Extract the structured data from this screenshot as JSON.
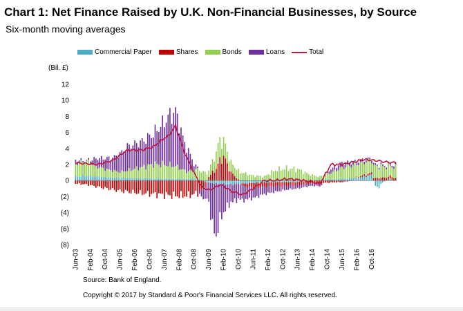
{
  "title": "Chart 1: Net Finance Raised by U.K. Non-Financial Businesses, by Source",
  "subtitle": "Six-month moving averages",
  "unit_label": "(Bil. £)",
  "source": "Source: Bank of England.",
  "copyright": "Copyright © 2017 by Standard & Poor's Financial Services LLC. All rights reserved.",
  "colors": {
    "commercial_paper": "#4bacc6",
    "shares": "#c00000",
    "bonds": "#92d050",
    "loans": "#7030a0",
    "total": "#c0143c"
  },
  "chart_data": {
    "type": "bar",
    "stacked": true,
    "frequency": "monthly",
    "ylim": [
      -8,
      12
    ],
    "yticks": [
      -8,
      -6,
      -4,
      -2,
      0,
      2,
      4,
      6,
      8,
      10,
      12
    ],
    "ytick_labels": [
      "(8)",
      "(6)",
      "(4)",
      "(2)",
      "0",
      "2",
      "4",
      "6",
      "8",
      "10",
      "12"
    ],
    "xtick_labels": [
      "Jun-03",
      "Feb-04",
      "Oct-04",
      "Jun-05",
      "Feb-06",
      "Oct-06",
      "Jun-07",
      "Feb-08",
      "Oct-08",
      "Jun-09",
      "Feb-10",
      "Oct-10",
      "Jun-11",
      "Feb-12",
      "Oct-12",
      "Jun-13",
      "Feb-14",
      "Oct-14",
      "Jun-15",
      "Feb-16",
      "Oct-16"
    ],
    "legend": [
      "Commercial Paper",
      "Shares",
      "Bonds",
      "Loans",
      "Total"
    ],
    "legend_position": "top",
    "grid": false,
    "anchors": {
      "commercial_paper": [
        [
          0,
          0.5
        ],
        [
          6,
          0.6
        ],
        [
          16,
          0.4
        ],
        [
          30,
          0.3
        ],
        [
          48,
          0.2
        ],
        [
          60,
          0.2
        ],
        [
          66,
          0.2
        ],
        [
          72,
          -0.3
        ],
        [
          84,
          -0.5
        ],
        [
          96,
          -0.3
        ],
        [
          108,
          -0.2
        ],
        [
          120,
          -0.2
        ],
        [
          132,
          0.1
        ],
        [
          144,
          0.2
        ],
        [
          150,
          0.3
        ],
        [
          156,
          0.5
        ],
        [
          160,
          0.7
        ],
        [
          162,
          -0.6
        ],
        [
          164,
          -0.9
        ],
        [
          166,
          -0.2
        ],
        [
          168,
          0.0
        ],
        [
          170,
          0.2
        ],
        [
          172,
          0.0
        ],
        [
          173,
          0.0
        ]
      ],
      "shares": [
        [
          0,
          -0.4
        ],
        [
          6,
          -0.5
        ],
        [
          12,
          -0.8
        ],
        [
          24,
          -1.3
        ],
        [
          36,
          -1.6
        ],
        [
          48,
          -1.8
        ],
        [
          54,
          -1.9
        ],
        [
          60,
          -1.9
        ],
        [
          66,
          -1.6
        ],
        [
          70,
          -0.6
        ],
        [
          72,
          0.5
        ],
        [
          76,
          1.5
        ],
        [
          78,
          2.5
        ],
        [
          80,
          3.0
        ],
        [
          82,
          2.0
        ],
        [
          84,
          1.0
        ],
        [
          90,
          -0.3
        ],
        [
          96,
          -0.6
        ],
        [
          108,
          -0.5
        ],
        [
          120,
          -0.4
        ],
        [
          132,
          -0.3
        ],
        [
          144,
          -0.2
        ],
        [
          156,
          0.2
        ],
        [
          168,
          0.4
        ],
        [
          173,
          0.3
        ]
      ],
      "bonds": [
        [
          0,
          1.6
        ],
        [
          6,
          1.8
        ],
        [
          12,
          1.2
        ],
        [
          24,
          0.7
        ],
        [
          36,
          1.4
        ],
        [
          42,
          1.8
        ],
        [
          48,
          1.8
        ],
        [
          54,
          1.6
        ],
        [
          60,
          0.9
        ],
        [
          66,
          1.2
        ],
        [
          70,
          1.0
        ],
        [
          72,
          0.8
        ],
        [
          76,
          2.0
        ],
        [
          78,
          2.6
        ],
        [
          80,
          2.0
        ],
        [
          84,
          1.2
        ],
        [
          90,
          1.0
        ],
        [
          96,
          0.6
        ],
        [
          102,
          0.5
        ],
        [
          108,
          1.3
        ],
        [
          114,
          1.5
        ],
        [
          120,
          1.4
        ],
        [
          126,
          0.8
        ],
        [
          132,
          0.4
        ],
        [
          138,
          0.8
        ],
        [
          144,
          1.4
        ],
        [
          150,
          1.6
        ],
        [
          156,
          1.6
        ],
        [
          162,
          1.5
        ],
        [
          168,
          1.3
        ],
        [
          173,
          1.3
        ]
      ],
      "loans": [
        [
          0,
          0.4
        ],
        [
          6,
          0.1
        ],
        [
          12,
          1.1
        ],
        [
          20,
          1.6
        ],
        [
          28,
          3.0
        ],
        [
          36,
          3.2
        ],
        [
          42,
          3.8
        ],
        [
          48,
          5.3
        ],
        [
          50,
          6.0
        ],
        [
          54,
          6.8
        ],
        [
          56,
          5.5
        ],
        [
          58,
          4.0
        ],
        [
          60,
          3.0
        ],
        [
          62,
          2.0
        ],
        [
          64,
          0.8
        ],
        [
          66,
          0.2
        ],
        [
          68,
          -1.0
        ],
        [
          70,
          -1.6
        ],
        [
          72,
          -2.4
        ],
        [
          74,
          -5.5
        ],
        [
          76,
          -6.5
        ],
        [
          78,
          -4.5
        ],
        [
          80,
          -3.5
        ],
        [
          84,
          -2.2
        ],
        [
          90,
          -1.8
        ],
        [
          96,
          -1.3
        ],
        [
          102,
          -0.9
        ],
        [
          108,
          -0.7
        ],
        [
          114,
          -0.5
        ],
        [
          120,
          -0.4
        ],
        [
          126,
          -0.3
        ],
        [
          132,
          -0.4
        ],
        [
          138,
          0.5
        ],
        [
          144,
          0.6
        ],
        [
          150,
          0.4
        ],
        [
          156,
          0.3
        ],
        [
          162,
          0.2
        ],
        [
          168,
          0.2
        ],
        [
          173,
          0.3
        ]
      ],
      "total": [
        [
          0,
          2.2
        ],
        [
          6,
          2.1
        ],
        [
          12,
          2.0
        ],
        [
          20,
          2.5
        ],
        [
          28,
          3.8
        ],
        [
          36,
          3.8
        ],
        [
          42,
          4.2
        ],
        [
          48,
          5.3
        ],
        [
          50,
          5.5
        ],
        [
          54,
          6.8
        ],
        [
          56,
          5.5
        ],
        [
          58,
          4.0
        ],
        [
          60,
          2.9
        ],
        [
          62,
          2.0
        ],
        [
          64,
          0.9
        ],
        [
          66,
          0.2
        ],
        [
          68,
          -0.8
        ],
        [
          70,
          -1.0
        ],
        [
          72,
          -1.2
        ],
        [
          74,
          -1.0
        ],
        [
          76,
          -0.8
        ],
        [
          78,
          -0.5
        ],
        [
          80,
          -0.7
        ],
        [
          84,
          -1.3
        ],
        [
          88,
          -1.6
        ],
        [
          90,
          -1.8
        ],
        [
          96,
          -1.0
        ],
        [
          102,
          0.0
        ],
        [
          108,
          0.0
        ],
        [
          114,
          0.2
        ],
        [
          120,
          0.1
        ],
        [
          126,
          -0.1
        ],
        [
          132,
          -0.4
        ],
        [
          138,
          2.0
        ],
        [
          144,
          2.0
        ],
        [
          150,
          2.3
        ],
        [
          156,
          2.6
        ],
        [
          162,
          2.5
        ],
        [
          168,
          2.3
        ],
        [
          173,
          2.2
        ]
      ]
    }
  }
}
